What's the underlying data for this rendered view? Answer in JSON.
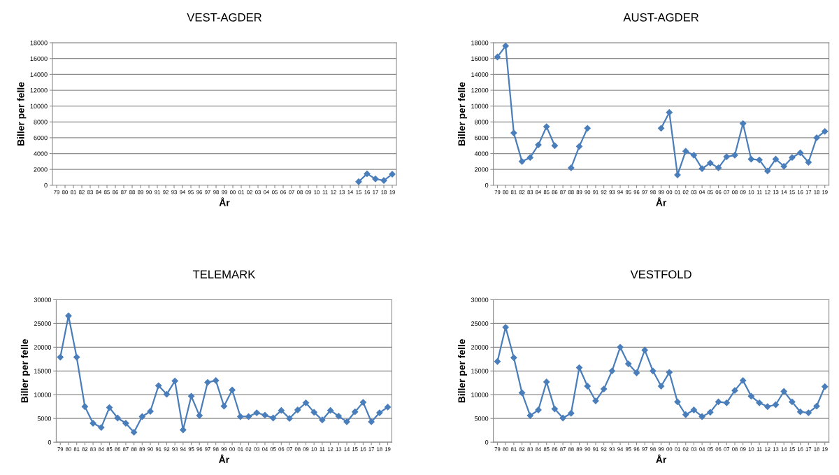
{
  "chart_data": [
    {
      "type": "line",
      "title": "VEST-AGDER",
      "xlabel": "År",
      "ylabel": "Biller per felle",
      "categories": [
        "79",
        "80",
        "81",
        "82",
        "83",
        "84",
        "85",
        "86",
        "87",
        "88",
        "89",
        "90",
        "91",
        "92",
        "93",
        "94",
        "95",
        "96",
        "97",
        "98",
        "99",
        "00",
        "01",
        "02",
        "03",
        "04",
        "05",
        "06",
        "07",
        "08",
        "09",
        "10",
        "11",
        "12",
        "13",
        "14",
        "15",
        "16",
        "17",
        "18",
        "19"
      ],
      "ylim": [
        0,
        18000
      ],
      "yticks": [
        0,
        2000,
        4000,
        6000,
        8000,
        10000,
        12000,
        14000,
        16000,
        18000
      ],
      "grid": "y",
      "marker": "diamond",
      "line_style": "solid",
      "series": [
        {
          "color": "#4a7ebb",
          "values": [
            null,
            null,
            null,
            null,
            null,
            null,
            null,
            null,
            null,
            null,
            null,
            null,
            null,
            null,
            null,
            null,
            null,
            null,
            null,
            null,
            null,
            null,
            null,
            null,
            null,
            null,
            null,
            null,
            null,
            null,
            null,
            null,
            null,
            null,
            null,
            null,
            450,
            1450,
            800,
            600,
            1400
          ]
        }
      ]
    },
    {
      "type": "line",
      "title": "AUST-AGDER",
      "xlabel": "År",
      "ylabel": "Biller per felle",
      "categories": [
        "79",
        "80",
        "81",
        "82",
        "83",
        "84",
        "85",
        "86",
        "87",
        "88",
        "89",
        "90",
        "91",
        "92",
        "93",
        "94",
        "95",
        "96",
        "97",
        "98",
        "99",
        "00",
        "01",
        "02",
        "03",
        "04",
        "05",
        "06",
        "07",
        "08",
        "09",
        "10",
        "11",
        "12",
        "13",
        "14",
        "15",
        "16",
        "17",
        "18",
        "19"
      ],
      "ylim": [
        0,
        18000
      ],
      "yticks": [
        0,
        2000,
        4000,
        6000,
        8000,
        10000,
        12000,
        14000,
        16000,
        18000
      ],
      "grid": "y",
      "marker": "diamond",
      "line_style": "solid",
      "series": [
        {
          "color": "#4a7ebb",
          "values": [
            16200,
            17600,
            6600,
            3000,
            3500,
            5100,
            7400,
            5000,
            null,
            2200,
            4900,
            7200,
            null,
            null,
            null,
            null,
            null,
            null,
            null,
            null,
            7200,
            9200,
            1300,
            4300,
            3800,
            2100,
            2800,
            2200,
            3600,
            3800,
            7800,
            3300,
            3200,
            1800,
            3300,
            2400,
            3500,
            4100,
            2900,
            6000,
            6800
          ]
        }
      ]
    },
    {
      "type": "line",
      "title": "TELEMARK",
      "xlabel": "År",
      "ylabel": "Biller per felle",
      "categories": [
        "79",
        "80",
        "81",
        "82",
        "83",
        "84",
        "85",
        "86",
        "87",
        "88",
        "89",
        "90",
        "91",
        "92",
        "93",
        "94",
        "95",
        "96",
        "97",
        "98",
        "99",
        "00",
        "01",
        "02",
        "03",
        "04",
        "05",
        "06",
        "07",
        "08",
        "09",
        "10",
        "11",
        "12",
        "13",
        "14",
        "15",
        "16",
        "17",
        "18",
        "19"
      ],
      "ylim": [
        0,
        30000
      ],
      "yticks": [
        0,
        5000,
        10000,
        15000,
        20000,
        25000,
        30000
      ],
      "grid": "y",
      "marker": "diamond",
      "line_style": "solid",
      "series": [
        {
          "color": "#4a7ebb",
          "values": [
            17900,
            26600,
            17900,
            7500,
            4000,
            3100,
            7300,
            5100,
            4000,
            2100,
            5400,
            6500,
            11900,
            10100,
            12900,
            2600,
            9700,
            5600,
            12600,
            13000,
            7600,
            11000,
            5400,
            5400,
            6200,
            5700,
            5100,
            6700,
            5000,
            6800,
            8300,
            6300,
            4700,
            6700,
            5500,
            4300,
            6400,
            8400,
            4300,
            6200,
            7400
          ]
        }
      ]
    },
    {
      "type": "line",
      "title": "VESTFOLD",
      "xlabel": "År",
      "ylabel": "Biller per felle",
      "categories": [
        "79",
        "80",
        "81",
        "82",
        "83",
        "84",
        "85",
        "86",
        "87",
        "88",
        "89",
        "90",
        "91",
        "92",
        "93",
        "94",
        "95",
        "96",
        "97",
        "98",
        "99",
        "00",
        "01",
        "02",
        "03",
        "04",
        "05",
        "06",
        "07",
        "08",
        "09",
        "10",
        "11",
        "12",
        "13",
        "14",
        "15",
        "16",
        "17",
        "18",
        "19"
      ],
      "ylim": [
        0,
        30000
      ],
      "yticks": [
        0,
        5000,
        10000,
        15000,
        20000,
        25000,
        30000
      ],
      "grid": "y",
      "marker": "diamond",
      "line_style": "solid",
      "series": [
        {
          "color": "#4a7ebb",
          "values": [
            17000,
            24200,
            17800,
            10400,
            5600,
            6800,
            12700,
            7000,
            5100,
            6100,
            15700,
            11800,
            8700,
            11200,
            15000,
            20000,
            16500,
            14600,
            19400,
            15000,
            11800,
            14700,
            8500,
            5800,
            6800,
            5400,
            6300,
            8500,
            8300,
            10900,
            13000,
            9700,
            8300,
            7500,
            7900,
            10700,
            8500,
            6400,
            6200,
            7600,
            11700
          ]
        }
      ]
    }
  ]
}
